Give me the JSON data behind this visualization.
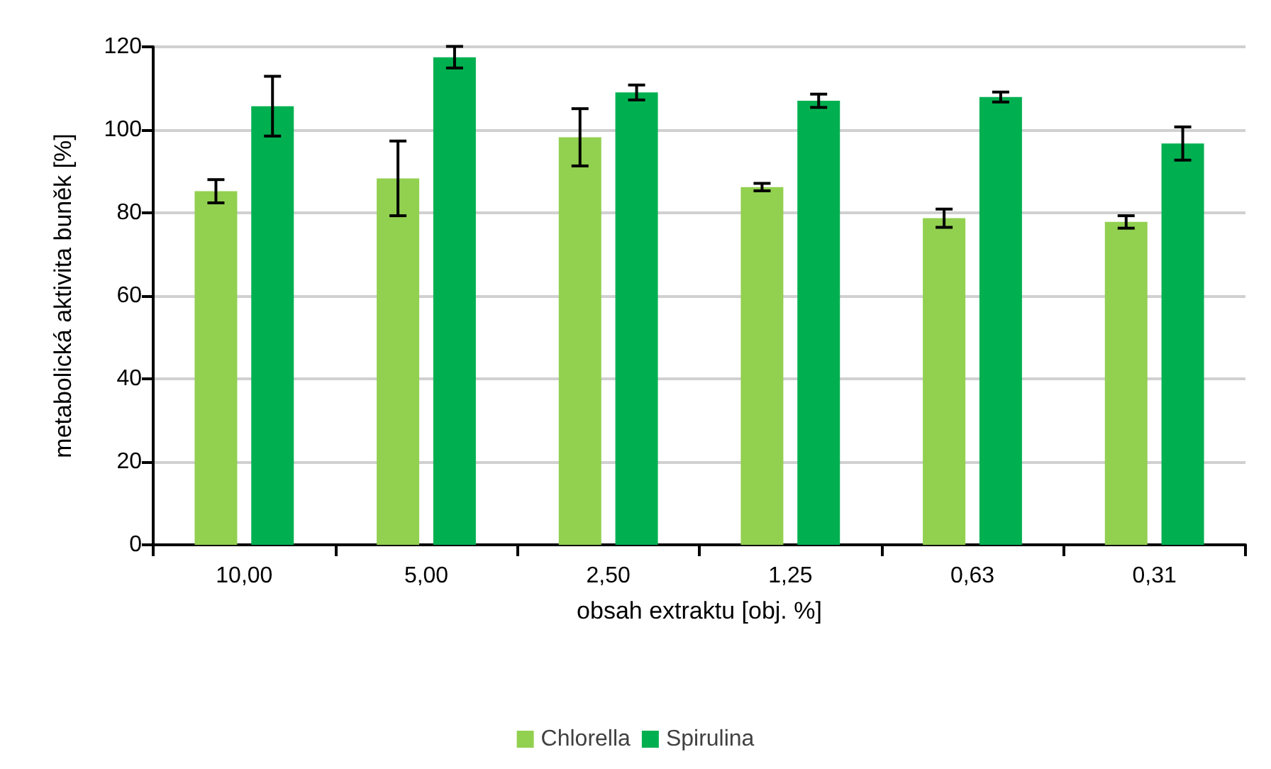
{
  "chart_data": {
    "type": "bar",
    "xlabel": "obsah extraktu [obj. %]",
    "ylabel": "metabolická aktivita buněk [%]",
    "categories": [
      "10,00",
      "5,00",
      "2,50",
      "1,25",
      "0,63",
      "0,31"
    ],
    "series": [
      {
        "name": "Chlorella",
        "color": "#92d050",
        "values": [
          85.2,
          88.3,
          98.2,
          86.2,
          78.7,
          77.8
        ],
        "errors": [
          2.8,
          9,
          6.9,
          0.9,
          2.2,
          1.5
        ]
      },
      {
        "name": "Spirulina",
        "color": "#00b050",
        "values": [
          105.7,
          117.5,
          109,
          107,
          107.9,
          96.7
        ],
        "errors": [
          7.2,
          2.6,
          1.8,
          1.6,
          1.2,
          4
        ]
      }
    ],
    "ylim": [
      0,
      120
    ],
    "yticks": [
      0,
      20,
      40,
      60,
      80,
      100,
      120
    ],
    "grid": "y",
    "legend": "bottom"
  }
}
